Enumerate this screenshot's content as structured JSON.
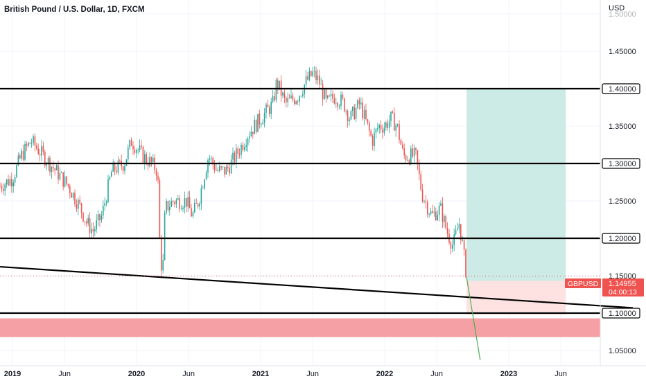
{
  "header": {
    "symbol_title": "British Pound / U.S. Dollar, 1D, FXCM",
    "currency": "USD"
  },
  "colors": {
    "up": "#26a69a",
    "down": "#ef5350",
    "target_zone": "#cdebe6",
    "stop_zone": "#fde2e1",
    "support_band": "#f4a0a4",
    "price_tag": "#ef5350",
    "level_line": "#000000",
    "projection": "#4caf50"
  },
  "price_tag": {
    "ticker": "GBPUSD",
    "price": "1.14955",
    "countdown": "04:00:13"
  },
  "chart_data": {
    "type": "candlestick",
    "title": "British Pound / U.S. Dollar, 1D, FXCM",
    "ylabel": "USD",
    "ylim": [
      1.025,
      1.515
    ],
    "x_tick_labels": [
      "2019",
      "Jun",
      "2020",
      "Jun",
      "2021",
      "Jun",
      "2022",
      "Jun",
      "2023",
      "Jun"
    ],
    "y_tick_labels": [
      "1.05000",
      "1.10000",
      "1.15000",
      "1.20000",
      "1.25000",
      "1.30000",
      "1.35000",
      "1.40000",
      "1.45000",
      "1.50000"
    ],
    "x_ticks": [
      {
        "label": "2019",
        "t": 2019.0
      },
      {
        "label": "Jun",
        "t": 2019.42
      },
      {
        "label": "2020",
        "t": 2020.0
      },
      {
        "label": "Jun",
        "t": 2020.42
      },
      {
        "label": "2021",
        "t": 2021.0
      },
      {
        "label": "Jun",
        "t": 2021.42
      },
      {
        "label": "2022",
        "t": 2022.0
      },
      {
        "label": "Jun",
        "t": 2022.42
      },
      {
        "label": "2023",
        "t": 2023.0
      },
      {
        "label": "Jun",
        "t": 2023.42
      }
    ],
    "y_ticks": [
      1.05,
      1.1,
      1.15,
      1.2,
      1.25,
      1.3,
      1.35,
      1.4,
      1.45,
      1.5
    ],
    "horizontal_levels": [
      1.4,
      1.3,
      1.2,
      1.1
    ],
    "level_labels": [
      "1.40000",
      "1.30000",
      "1.20000",
      "1.10000"
    ],
    "trendline": {
      "t_start": 2018.9,
      "price_start": 1.162,
      "t_end": 2024.0,
      "price_end": 1.107
    },
    "support_zone": {
      "low": 1.068,
      "high": 1.093
    },
    "position": {
      "t_start": 2022.66,
      "t_end": 2023.46,
      "entry": 1.143,
      "target": 1.4,
      "stop": 1.098
    },
    "projection": {
      "t_start": 2022.66,
      "price_start": 1.148,
      "t_end": 2022.77,
      "price_end": 1.037
    },
    "last_price": 1.14955,
    "price_anchors": [
      [
        2018.9,
        1.27
      ],
      [
        2019.0,
        1.28
      ],
      [
        2019.07,
        1.31
      ],
      [
        2019.15,
        1.33
      ],
      [
        2019.25,
        1.31
      ],
      [
        2019.35,
        1.29
      ],
      [
        2019.45,
        1.27
      ],
      [
        2019.55,
        1.24
      ],
      [
        2019.6,
        1.22
      ],
      [
        2019.65,
        1.21
      ],
      [
        2019.72,
        1.23
      ],
      [
        2019.8,
        1.29
      ],
      [
        2019.9,
        1.3
      ],
      [
        2019.96,
        1.33
      ],
      [
        2020.05,
        1.31
      ],
      [
        2020.12,
        1.3
      ],
      [
        2020.17,
        1.29
      ],
      [
        2020.19,
        1.18
      ],
      [
        2020.21,
        1.15
      ],
      [
        2020.23,
        1.24
      ],
      [
        2020.3,
        1.25
      ],
      [
        2020.4,
        1.25
      ],
      [
        2020.45,
        1.23
      ],
      [
        2020.5,
        1.25
      ],
      [
        2020.58,
        1.31
      ],
      [
        2020.65,
        1.29
      ],
      [
        2020.72,
        1.29
      ],
      [
        2020.8,
        1.31
      ],
      [
        2020.9,
        1.34
      ],
      [
        2021.0,
        1.36
      ],
      [
        2021.1,
        1.38
      ],
      [
        2021.13,
        1.41
      ],
      [
        2021.2,
        1.38
      ],
      [
        2021.3,
        1.39
      ],
      [
        2021.37,
        1.41
      ],
      [
        2021.42,
        1.42
      ],
      [
        2021.47,
        1.41
      ],
      [
        2021.53,
        1.38
      ],
      [
        2021.6,
        1.39
      ],
      [
        2021.67,
        1.38
      ],
      [
        2021.72,
        1.36
      ],
      [
        2021.8,
        1.38
      ],
      [
        2021.9,
        1.33
      ],
      [
        2021.95,
        1.35
      ],
      [
        2022.0,
        1.35
      ],
      [
        2022.05,
        1.36
      ],
      [
        2022.1,
        1.35
      ],
      [
        2022.15,
        1.31
      ],
      [
        2022.25,
        1.31
      ],
      [
        2022.3,
        1.26
      ],
      [
        2022.38,
        1.23
      ],
      [
        2022.45,
        1.24
      ],
      [
        2022.5,
        1.21
      ],
      [
        2022.55,
        1.19
      ],
      [
        2022.6,
        1.22
      ],
      [
        2022.62,
        1.2
      ],
      [
        2022.66,
        1.14955
      ]
    ]
  }
}
